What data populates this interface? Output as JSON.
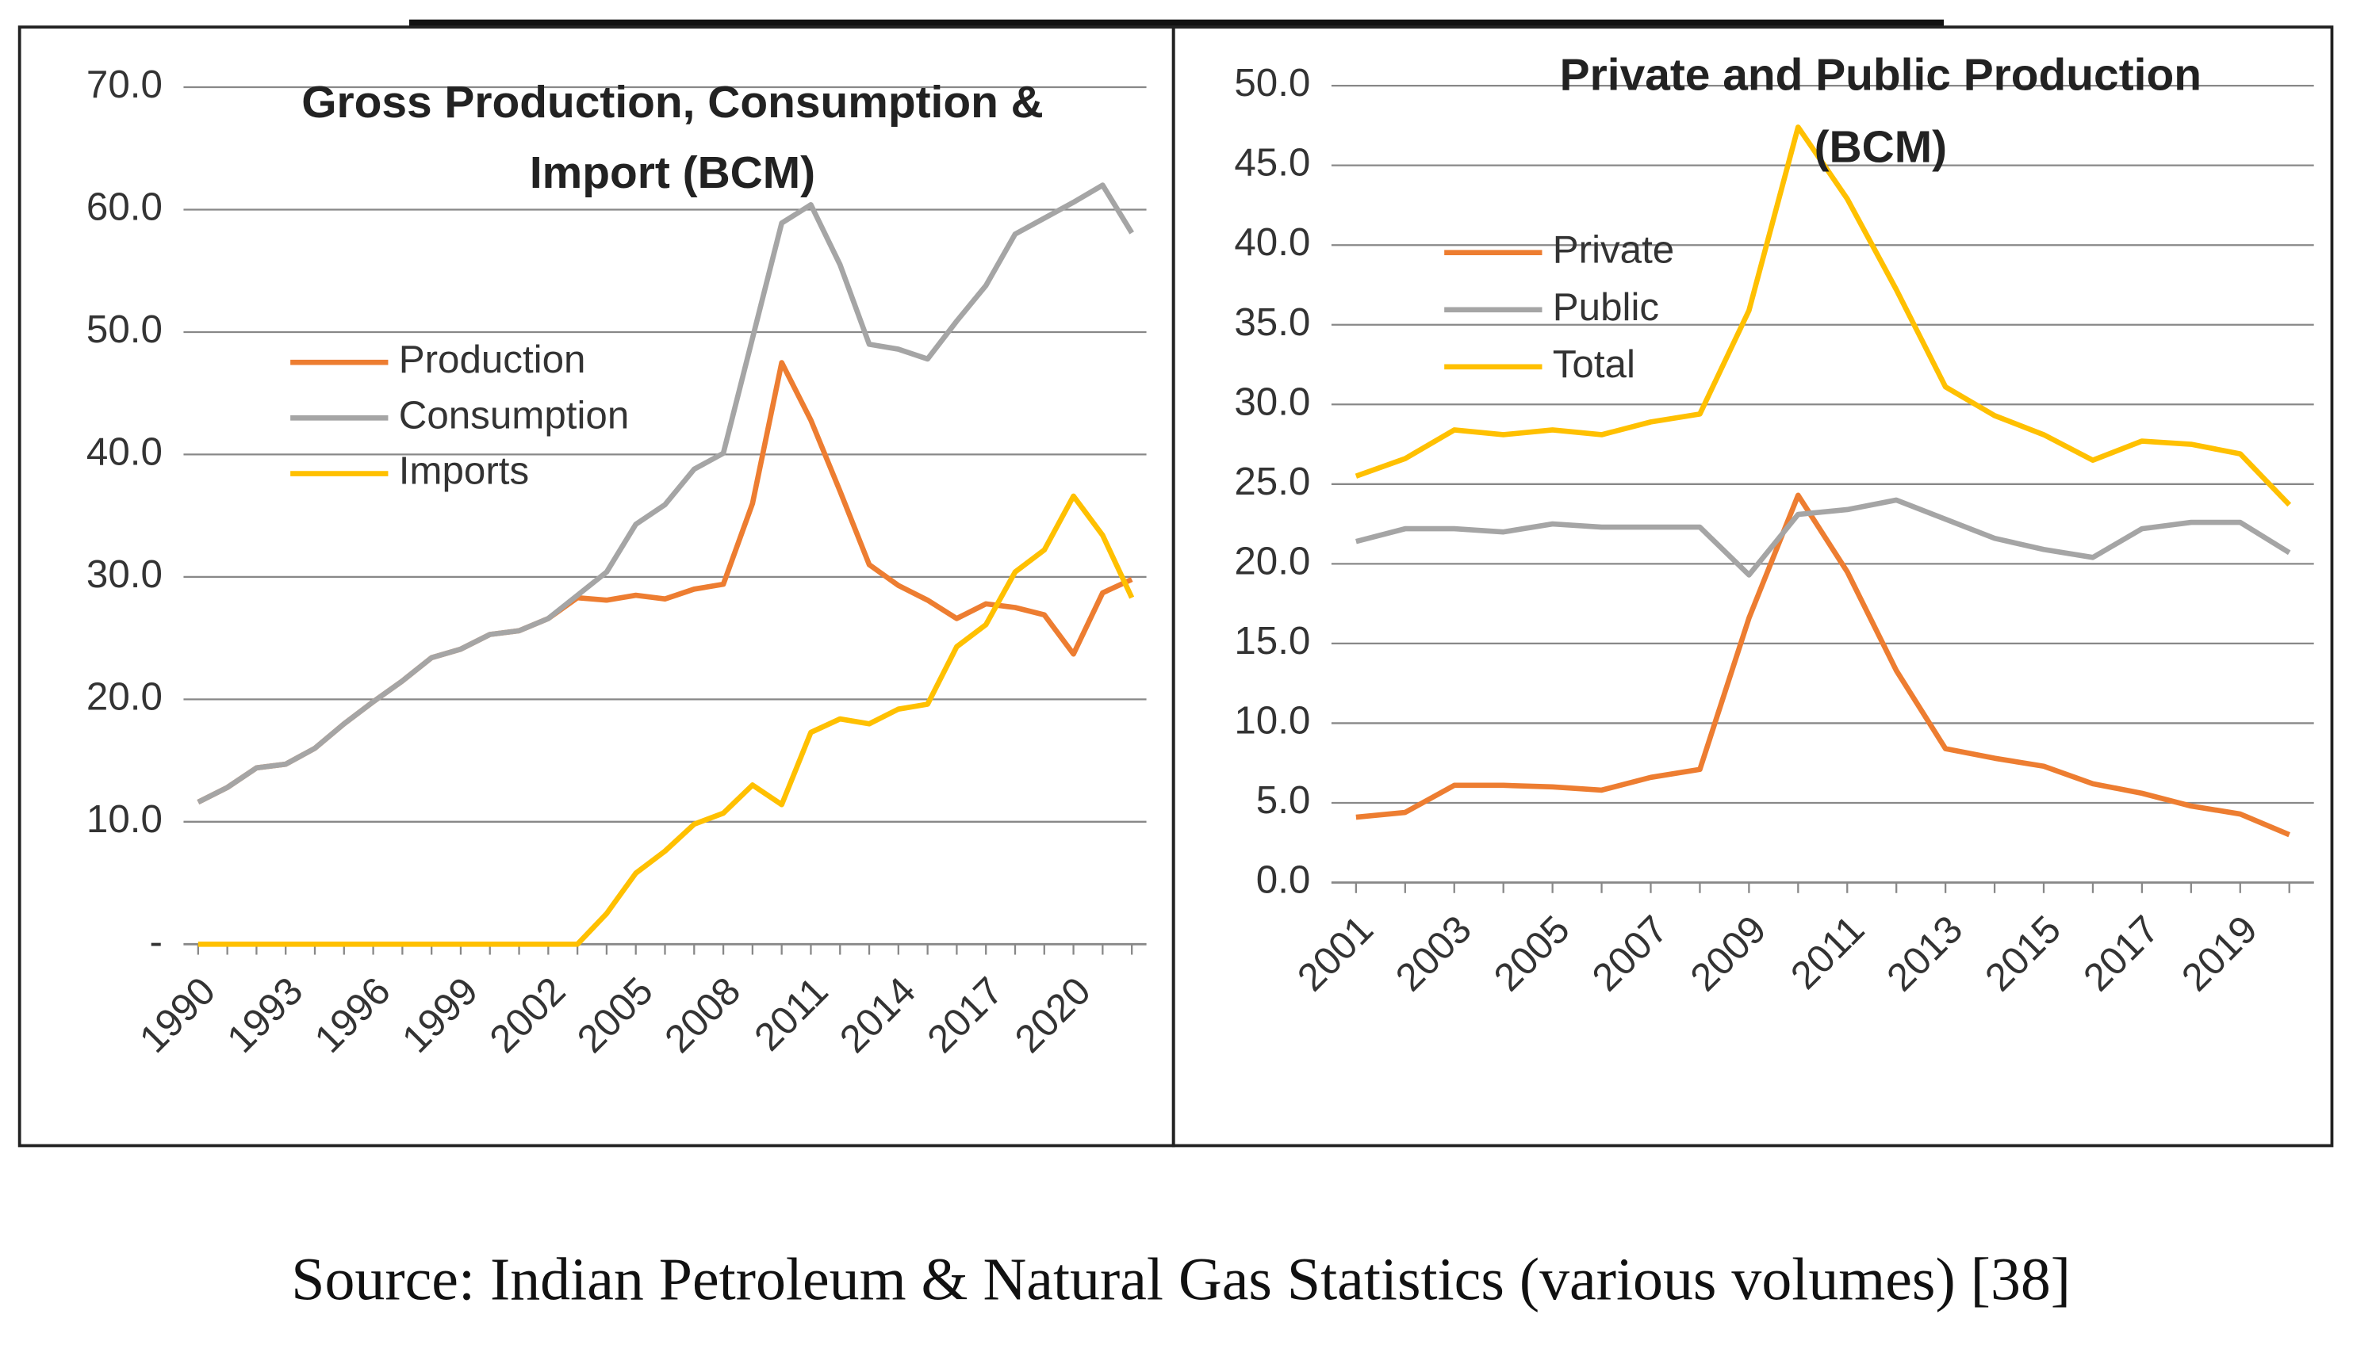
{
  "chart_data": [
    {
      "type": "line",
      "title": [
        "Gross Production, Consumption &",
        "Import (BCM)"
      ],
      "x": [
        1990,
        1991,
        1992,
        1993,
        1994,
        1995,
        1996,
        1997,
        1998,
        1999,
        2000,
        2001,
        2002,
        2003,
        2004,
        2005,
        2006,
        2007,
        2008,
        2009,
        2010,
        2011,
        2012,
        2013,
        2014,
        2015,
        2016,
        2017,
        2018,
        2019,
        2020,
        2021,
        2022
      ],
      "xlim": [
        1989.5,
        2022.5
      ],
      "xticks": [
        1990,
        1993,
        1996,
        1999,
        2002,
        2005,
        2008,
        2011,
        2014,
        2017,
        2020
      ],
      "ylim": [
        0,
        70
      ],
      "yticks": [
        {
          "value": 0,
          "label": "-"
        },
        {
          "value": 10,
          "label": "10.0"
        },
        {
          "value": 20,
          "label": "20.0"
        },
        {
          "value": 30,
          "label": "30.0"
        },
        {
          "value": 40,
          "label": "40.0"
        },
        {
          "value": 50,
          "label": "50.0"
        },
        {
          "value": 60,
          "label": "60.0"
        },
        {
          "value": 70,
          "label": "70.0"
        }
      ],
      "grid": true,
      "series": [
        {
          "name": "Production",
          "color": "#ed7d31",
          "values": [
            11.6,
            12.8,
            14.4,
            14.7,
            16.0,
            18.0,
            19.8,
            21.5,
            23.4,
            24.1,
            25.3,
            25.6,
            26.6,
            28.3,
            28.1,
            28.5,
            28.2,
            29.0,
            29.4,
            36.0,
            47.5,
            42.8,
            37.0,
            31.0,
            29.3,
            28.1,
            26.6,
            27.8,
            27.5,
            26.9,
            23.7,
            28.7,
            29.8
          ]
        },
        {
          "name": "Consumption",
          "color": "#a5a5a5",
          "values": [
            11.6,
            12.8,
            14.4,
            14.7,
            16.0,
            18.0,
            19.8,
            21.5,
            23.4,
            24.1,
            25.3,
            25.6,
            26.6,
            28.5,
            30.4,
            34.3,
            35.9,
            38.8,
            40.1,
            49.5,
            58.9,
            60.4,
            55.5,
            49.0,
            48.6,
            47.8,
            50.9,
            53.8,
            58.0,
            59.3,
            60.6,
            62.0,
            58.1
          ]
        },
        {
          "name": "Imports",
          "color": "#ffc000",
          "values": [
            0,
            0,
            0,
            0,
            0,
            0,
            0,
            0,
            0,
            0,
            0,
            0,
            0,
            0,
            2.5,
            5.8,
            7.6,
            9.8,
            10.7,
            13.0,
            11.4,
            17.3,
            18.4,
            18.0,
            19.2,
            19.6,
            24.3,
            26.1,
            30.4,
            32.2,
            36.6,
            33.4,
            28.3
          ]
        }
      ]
    },
    {
      "type": "line",
      "title": [
        "Private and Public Production",
        "(BCM)"
      ],
      "x": [
        2001,
        2002,
        2003,
        2004,
        2005,
        2006,
        2007,
        2008,
        2009,
        2010,
        2011,
        2012,
        2013,
        2014,
        2015,
        2016,
        2017,
        2018,
        2019,
        2020
      ],
      "xlim": [
        2000.5,
        2020.5
      ],
      "xticks": [
        2001,
        2003,
        2005,
        2007,
        2009,
        2011,
        2013,
        2015,
        2017,
        2019
      ],
      "ylim": [
        0,
        50
      ],
      "yticks": [
        {
          "value": 0,
          "label": "0.0"
        },
        {
          "value": 5,
          "label": "5.0"
        },
        {
          "value": 10,
          "label": "10.0"
        },
        {
          "value": 15,
          "label": "15.0"
        },
        {
          "value": 20,
          "label": "20.0"
        },
        {
          "value": 25,
          "label": "25.0"
        },
        {
          "value": 30,
          "label": "30.0"
        },
        {
          "value": 35,
          "label": "35.0"
        },
        {
          "value": 40,
          "label": "40.0"
        },
        {
          "value": 45,
          "label": "45.0"
        },
        {
          "value": 50,
          "label": "50.0"
        }
      ],
      "grid": true,
      "series": [
        {
          "name": "Private",
          "color": "#ed7d31",
          "values": [
            4.1,
            4.4,
            6.1,
            6.1,
            6.0,
            5.8,
            6.6,
            7.1,
            16.6,
            24.3,
            19.5,
            13.3,
            8.4,
            7.8,
            7.3,
            6.2,
            5.6,
            4.8,
            4.3,
            3.0
          ]
        },
        {
          "name": "Public",
          "color": "#a5a5a5",
          "values": [
            21.4,
            22.2,
            22.2,
            22.0,
            22.5,
            22.3,
            22.3,
            22.3,
            19.3,
            23.1,
            23.4,
            24.0,
            22.8,
            21.6,
            20.9,
            20.4,
            22.2,
            22.6,
            22.6,
            20.7
          ]
        },
        {
          "name": "Total",
          "color": "#ffc000",
          "values": [
            25.5,
            26.6,
            28.4,
            28.1,
            28.4,
            28.1,
            28.9,
            29.4,
            35.9,
            47.4,
            42.9,
            37.2,
            31.1,
            29.3,
            28.1,
            26.5,
            27.7,
            27.5,
            26.9,
            23.7
          ]
        }
      ]
    }
  ],
  "caption": "Source: Indian Petroleum & Natural Gas Statistics (various volumes) [38]"
}
